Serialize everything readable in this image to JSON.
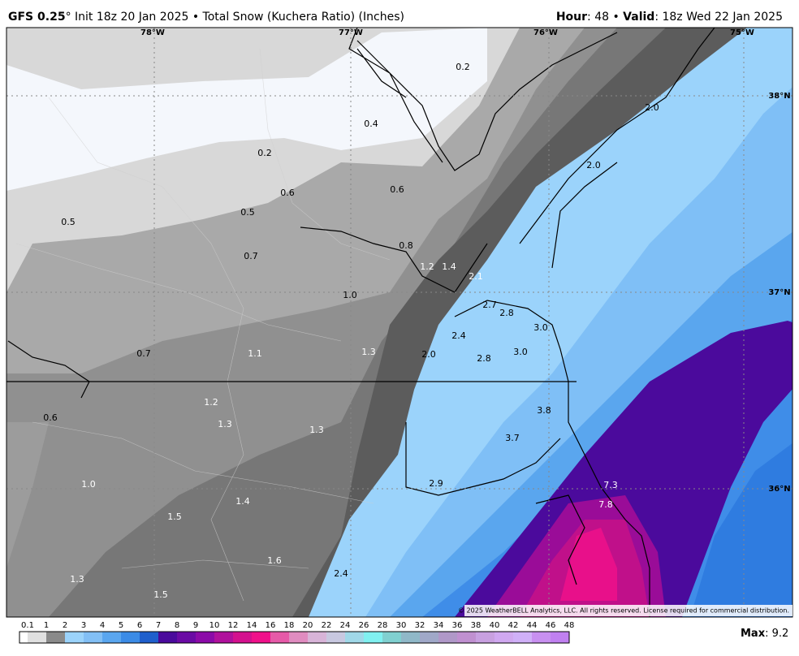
{
  "header": {
    "model": "GFS 0.25",
    "run": "° Init 18z 20 Jan 2025 • Total Snow (Kuchera Ratio) (Inches)",
    "hour_label": "Hour",
    "hour_value": ": 48 • ",
    "valid_label": "Valid",
    "valid_value": ": 18z Wed 22 Jan 2025"
  },
  "map": {
    "lon_labels": [
      "78°W",
      "77°W",
      "76°W",
      "75°W"
    ],
    "lat_labels": [
      "38°N",
      "37°N",
      "36°N"
    ],
    "point_values": [
      "0.2",
      "0.4",
      "0.2",
      "0.6",
      "0.6",
      "0.5",
      "0.5",
      "0.8",
      "0.7",
      "1.2",
      "1.4",
      "2.1",
      "1.0",
      "2.7",
      "2.8",
      "3.0",
      "2.4",
      "0.7",
      "1.1",
      "1.3",
      "2.0",
      "2.8",
      "3.0",
      "1.2",
      "0.6",
      "3.8",
      "1.3",
      "1.3",
      "3.7",
      "2.9",
      "1.0",
      "7.3",
      "1.4",
      "7.8",
      "1.5",
      "1.6",
      "2.4",
      "1.3",
      "1.5",
      "2.0",
      "2.0"
    ],
    "copyright": "© 2025 WeatherBELL Analytics, LLC. All rights reserved. License required for commercial distribution."
  },
  "legend": {
    "labels": [
      "0.1",
      "1",
      "2",
      "3",
      "4",
      "5",
      "6",
      "7",
      "8",
      "9",
      "10",
      "12",
      "14",
      "16",
      "18",
      "20",
      "22",
      "24",
      "26",
      "28",
      "30",
      "32",
      "34",
      "36",
      "38",
      "40",
      "42",
      "44",
      "46",
      "48"
    ],
    "colors": [
      "#e0e0e0",
      "#8a8a8a",
      "#9bd3fb",
      "#82bff5",
      "#5aa6ef",
      "#3b8be6",
      "#1f5fcc",
      "#4a0a9c",
      "#6a0aa4",
      "#8b0aa8",
      "#b0109c",
      "#d4108e",
      "#f0108a",
      "#e65aa8",
      "#e08cc0",
      "#d8b4d8",
      "#c8c8e0",
      "#a0d8e8",
      "#80f0f0",
      "#80d0d0",
      "#90b8c8",
      "#a0a8c8",
      "#b098c8",
      "#c090d0",
      "#c8a0e0",
      "#d0a8f0",
      "#d0b0f8",
      "#c890f0",
      "#c080f0"
    ]
  },
  "footer": {
    "max_label": "Max",
    "max_value": ": 9.2"
  }
}
